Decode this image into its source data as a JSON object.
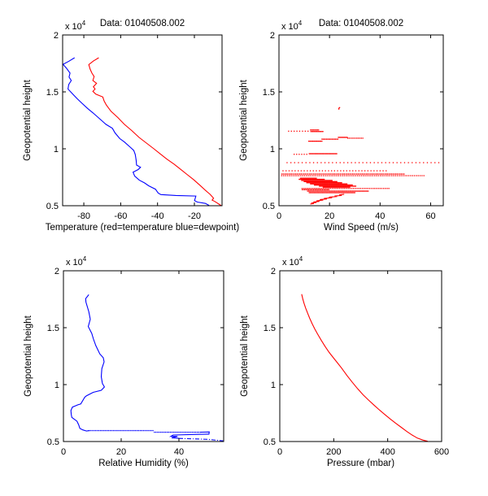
{
  "figure": {
    "background": "#ffffff",
    "axis_color": "#000000",
    "temperature_color": "#ff0000",
    "dewpoint_color": "#0000ff",
    "wind_color": "#ff0000",
    "humidity_color": "#0000ff",
    "pressure_color": "#ff0000"
  },
  "chart_data": [
    {
      "id": "temperature",
      "type": "line",
      "title": "Data: 01040508.002",
      "xlabel": "Temperature (red=temperature blue=dewpoint)",
      "ylabel": "Geopotential height",
      "exponent": {
        "base": "x 10",
        "power": "4"
      },
      "xlim": [
        -91.5,
        -5
      ],
      "ylim": [
        0.5,
        2
      ],
      "xticks": [
        -80,
        -60,
        -40,
        -20
      ],
      "xtick_labels": [
        "-80",
        "-60",
        "-40",
        "-20"
      ],
      "yticks": [
        0.5,
        1,
        1.5,
        2
      ],
      "ytick_labels": [
        "0.5",
        "1",
        "1.5",
        "2"
      ],
      "grid": "off",
      "legend": "none",
      "series": [
        {
          "name": "temperature",
          "type": "line",
          "color": "#ff0000",
          "points": [
            [
              -71.9,
              1.8
            ],
            [
              -74.9,
              1.77
            ],
            [
              -77.3,
              1.74
            ],
            [
              -76.6,
              1.7
            ],
            [
              -75.6,
              1.665
            ],
            [
              -74.4,
              1.635
            ],
            [
              -75.1,
              1.6
            ],
            [
              -73.1,
              1.575
            ],
            [
              -74.8,
              1.545
            ],
            [
              -73.9,
              1.525
            ],
            [
              -75.1,
              1.505
            ],
            [
              -73.5,
              1.48
            ],
            [
              -69.7,
              1.455
            ],
            [
              -69,
              1.42
            ],
            [
              -67.8,
              1.385
            ],
            [
              -65.3,
              1.33
            ],
            [
              -61.6,
              1.275
            ],
            [
              -58,
              1.215
            ],
            [
              -54,
              1.16
            ],
            [
              -50,
              1.1
            ],
            [
              -46,
              1.05
            ],
            [
              -42,
              1.0
            ],
            [
              -38.5,
              0.955
            ],
            [
              -35,
              0.91
            ],
            [
              -31,
              0.865
            ],
            [
              -27.5,
              0.82
            ],
            [
              -24,
              0.775
            ],
            [
              -20.5,
              0.73
            ],
            [
              -17,
              0.68
            ],
            [
              -14,
              0.635
            ],
            [
              -11.5,
              0.6
            ],
            [
              -9.6,
              0.566
            ],
            [
              -10.4,
              0.549
            ],
            [
              -8.9,
              0.537
            ],
            [
              -6.7,
              0.514
            ],
            [
              -5.4,
              0.5
            ]
          ]
        },
        {
          "name": "dewpoint",
          "type": "line",
          "color": "#0000ff",
          "points": [
            [
              -85,
              1.8
            ],
            [
              -88,
              1.77
            ],
            [
              -91.3,
              1.742
            ],
            [
              -89.5,
              1.71
            ],
            [
              -87.5,
              1.665
            ],
            [
              -88,
              1.63
            ],
            [
              -86.8,
              1.6
            ],
            [
              -88.2,
              1.565
            ],
            [
              -88.6,
              1.525
            ],
            [
              -86,
              1.48
            ],
            [
              -83.6,
              1.44
            ],
            [
              -81,
              1.4
            ],
            [
              -78,
              1.355
            ],
            [
              -75,
              1.315
            ],
            [
              -71.5,
              1.265
            ],
            [
              -68,
              1.215
            ],
            [
              -64.5,
              1.18
            ],
            [
              -63.1,
              1.14
            ],
            [
              -60.5,
              1.09
            ],
            [
              -58,
              1.06
            ],
            [
              -54.5,
              1.01
            ],
            [
              -52.9,
              0.985
            ],
            [
              -52.1,
              0.95
            ],
            [
              -51.6,
              0.9
            ],
            [
              -51.4,
              0.857
            ],
            [
              -49.2,
              0.838
            ],
            [
              -50.5,
              0.818
            ],
            [
              -53.3,
              0.795
            ],
            [
              -52.4,
              0.76
            ],
            [
              -49.9,
              0.724
            ],
            [
              -47,
              0.7
            ],
            [
              -44.8,
              0.675
            ],
            [
              -41.1,
              0.645
            ],
            [
              -39.7,
              0.612
            ],
            [
              -38.2,
              0.598
            ],
            [
              -30,
              0.59
            ],
            [
              -19.2,
              0.585
            ],
            [
              -19.9,
              0.545
            ],
            [
              -18.4,
              0.532
            ],
            [
              -14,
              0.52
            ],
            [
              -12,
              0.503
            ]
          ]
        }
      ]
    },
    {
      "id": "wind",
      "type": "scatter",
      "title": "Data: 01040508.002",
      "xlabel": "Wind Speed (m/s)",
      "ylabel": "Geopotential height",
      "exponent": {
        "base": "x 10",
        "power": "4"
      },
      "xlim": [
        0,
        65
      ],
      "ylim": [
        0.5,
        2
      ],
      "xticks": [
        0,
        20,
        40,
        60
      ],
      "xtick_labels": [
        "0",
        "20",
        "40",
        "60"
      ],
      "yticks": [
        0.5,
        1,
        1.5,
        2
      ],
      "ytick_labels": [
        "0.5",
        "1",
        "1.5",
        "2"
      ],
      "grid": "off",
      "legend": "none",
      "series": [
        {
          "name": "wind-speed-dots",
          "type": "dots",
          "color": "#ff0000",
          "points": [
            [
              23.7,
              1.349
            ],
            [
              23.7,
              1.356
            ],
            [
              24,
              1.362
            ]
          ],
          "segments": [
            {
              "y": 1.165,
              "x1": 12.5,
              "x2": 16,
              "step": 0.4
            },
            {
              "y": 1.155,
              "x1": 3.8,
              "x2": 12.4,
              "step": 1.1
            },
            {
              "y": 1.152,
              "x1": 12.6,
              "x2": 17.7,
              "step": 0.4
            },
            {
              "y": 1.1,
              "x1": 23.5,
              "x2": 27,
              "step": 0.35
            },
            {
              "y": 1.093,
              "x1": 27.2,
              "x2": 33.5,
              "step": 0.6
            },
            {
              "y": 1.085,
              "x1": 17,
              "x2": 23.4,
              "step": 0.45
            },
            {
              "y": 1.067,
              "x1": 11.8,
              "x2": 17,
              "step": 0.4
            },
            {
              "y": 0.957,
              "x1": 12,
              "x2": 23,
              "step": 0.35
            },
            {
              "y": 0.952,
              "x1": 6,
              "x2": 11.8,
              "step": 1.0
            },
            {
              "y": 0.878,
              "x1": 3.2,
              "x2": 64.5,
              "step": 1.5
            },
            {
              "y": 0.807,
              "x1": 1.6,
              "x2": 43,
              "step": 1.2
            },
            {
              "y": 0.778,
              "x1": 1.1,
              "x2": 50,
              "step": 0.55
            },
            {
              "y": 0.764,
              "x1": 1.1,
              "x2": 57.5,
              "step": 0.75
            },
            {
              "y": 0.742,
              "x1": 8.5,
              "x2": 15,
              "step": 0.3
            },
            {
              "y": 0.732,
              "x1": 8,
              "x2": 18,
              "step": 0.3
            },
            {
              "y": 0.722,
              "x1": 9,
              "x2": 21,
              "step": 0.3
            },
            {
              "y": 0.712,
              "x1": 10,
              "x2": 23,
              "step": 0.3
            },
            {
              "y": 0.702,
              "x1": 11,
              "x2": 25,
              "step": 0.3
            },
            {
              "y": 0.692,
              "x1": 12.5,
              "x2": 27,
              "step": 0.3
            },
            {
              "y": 0.682,
              "x1": 14,
              "x2": 29,
              "step": 0.3
            },
            {
              "y": 0.672,
              "x1": 16,
              "x2": 30.5,
              "step": 0.3
            },
            {
              "y": 0.663,
              "x1": 17.5,
              "x2": 28,
              "step": 0.3
            },
            {
              "y": 0.652,
              "x1": 9.2,
              "x2": 43.5,
              "step": 0.7
            },
            {
              "y": 0.641,
              "x1": 9.2,
              "x2": 20,
              "step": 0.5
            },
            {
              "y": 0.628,
              "x1": 11.3,
              "x2": 35.5,
              "step": 0.4
            },
            {
              "y": 0.615,
              "x1": 12,
              "x2": 30,
              "step": 0.4
            }
          ]
        },
        {
          "name": "wind-speed-trace",
          "type": "line",
          "color": "#ff0000",
          "points": [
            [
              12.4,
              0.515
            ],
            [
              13.8,
              0.519
            ],
            [
              12.8,
              0.524
            ],
            [
              14.8,
              0.528
            ],
            [
              13.6,
              0.533
            ],
            [
              16,
              0.538
            ],
            [
              14.8,
              0.543
            ],
            [
              17.5,
              0.549
            ],
            [
              16.2,
              0.554
            ],
            [
              19,
              0.559
            ],
            [
              17.8,
              0.564
            ],
            [
              21,
              0.57
            ],
            [
              19.8,
              0.576
            ],
            [
              23,
              0.581
            ],
            [
              22,
              0.586
            ],
            [
              24.8,
              0.59
            ],
            [
              23.8,
              0.595
            ],
            [
              25.8,
              0.601
            ]
          ]
        }
      ]
    },
    {
      "id": "humidity",
      "type": "line",
      "title": "",
      "xlabel": "Relative Humidity (%)",
      "ylabel": "Geopotential height",
      "exponent": {
        "base": "x 10",
        "power": "4"
      },
      "xlim": [
        0,
        55.5
      ],
      "ylim": [
        0.5,
        2
      ],
      "xticks": [
        0,
        20,
        40
      ],
      "xtick_labels": [
        "0",
        "20",
        "40"
      ],
      "yticks": [
        0.5,
        1,
        1.5,
        2
      ],
      "ytick_labels": [
        "0.5",
        "1",
        "1.5",
        "2"
      ],
      "grid": "off",
      "legend": "none",
      "series": [
        {
          "name": "relative-humidity",
          "type": "line",
          "color": "#0000ff",
          "points": [
            [
              8.8,
              1.79
            ],
            [
              7.7,
              1.755
            ],
            [
              7.8,
              1.724
            ],
            [
              8.8,
              1.64
            ],
            [
              9.3,
              1.574
            ],
            [
              8.6,
              1.51
            ],
            [
              9.8,
              1.45
            ],
            [
              10.4,
              1.4
            ],
            [
              11.2,
              1.343
            ],
            [
              12.6,
              1.27
            ],
            [
              13.8,
              1.236
            ],
            [
              14.1,
              1.2
            ],
            [
              13.3,
              1.14
            ],
            [
              13.1,
              1.07
            ],
            [
              13.5,
              1.01
            ],
            [
              14.2,
              0.979
            ],
            [
              13.1,
              0.95
            ],
            [
              10.3,
              0.932
            ],
            [
              8,
              0.902
            ],
            [
              7.4,
              0.89
            ],
            [
              6,
              0.83
            ],
            [
              5,
              0.822
            ],
            [
              3.1,
              0.802
            ],
            [
              2.6,
              0.772
            ],
            [
              2.7,
              0.738
            ],
            [
              2.9,
              0.712
            ],
            [
              4.7,
              0.678
            ],
            [
              5.3,
              0.646
            ],
            [
              5.7,
              0.615
            ],
            [
              6.7,
              0.602
            ],
            [
              8,
              0.592
            ],
            [
              9,
              0.596
            ]
          ]
        },
        {
          "name": "rh-dotted-run",
          "type": "dots",
          "color": "#0000ff",
          "segments": [
            {
              "y": 0.596,
              "x1": 9,
              "x2": 31.5,
              "step": 0.55
            },
            {
              "y": 0.582,
              "x1": 31.5,
              "x2": 47.5,
              "step": 0.55
            }
          ]
        },
        {
          "name": "rh-lower-trace",
          "type": "line",
          "color": "#0000ff",
          "points": [
            [
              47.5,
              0.582
            ],
            [
              50.5,
              0.584
            ],
            [
              50.4,
              0.565
            ],
            [
              38,
              0.557
            ],
            [
              37.2,
              0.545
            ],
            [
              39.5,
              0.545
            ],
            [
              37.5,
              0.532
            ],
            [
              40,
              0.528
            ]
          ]
        },
        {
          "name": "rh-dashed-run",
          "type": "line",
          "color": "#0000ff",
          "dash": "5 2 1 2",
          "points": [
            [
              40,
              0.527
            ],
            [
              50,
              0.519
            ],
            [
              55.3,
              0.506
            ]
          ]
        }
      ]
    },
    {
      "id": "pressure",
      "type": "line",
      "title": "",
      "xlabel": "Pressure (mbar)",
      "ylabel": "Geopotential height",
      "exponent": {
        "base": "x 10",
        "power": "4"
      },
      "xlim": [
        0,
        600
      ],
      "ylim": [
        0.5,
        2
      ],
      "xticks": [
        0,
        200,
        400,
        600
      ],
      "xtick_labels": [
        "0",
        "200",
        "400",
        "600"
      ],
      "yticks": [
        0.5,
        1,
        1.5,
        2
      ],
      "ytick_labels": [
        "0.5",
        "1",
        "1.5",
        "2"
      ],
      "grid": "off",
      "legend": "none",
      "series": [
        {
          "name": "pressure",
          "type": "line",
          "color": "#ff0000",
          "points": [
            [
              81,
              1.795
            ],
            [
              85,
              1.755
            ],
            [
              90,
              1.715
            ],
            [
              96,
              1.672
            ],
            [
              103,
              1.628
            ],
            [
              111,
              1.582
            ],
            [
              120,
              1.535
            ],
            [
              130,
              1.487
            ],
            [
              141,
              1.44
            ],
            [
              154,
              1.388
            ],
            [
              168,
              1.335
            ],
            [
              183,
              1.283
            ],
            [
              199,
              1.235
            ],
            [
              214,
              1.19
            ],
            [
              229,
              1.145
            ],
            [
              249,
              1.08
            ],
            [
              269,
              1.02
            ],
            [
              289,
              0.962
            ],
            [
              309,
              0.91
            ],
            [
              329,
              0.864
            ],
            [
              349,
              0.82
            ],
            [
              369,
              0.778
            ],
            [
              389,
              0.738
            ],
            [
              410,
              0.697
            ],
            [
              430,
              0.66
            ],
            [
              450,
              0.625
            ],
            [
              470,
              0.59
            ],
            [
              490,
              0.558
            ],
            [
              510,
              0.53
            ],
            [
              530,
              0.513
            ],
            [
              548,
              0.502
            ]
          ]
        }
      ]
    }
  ]
}
